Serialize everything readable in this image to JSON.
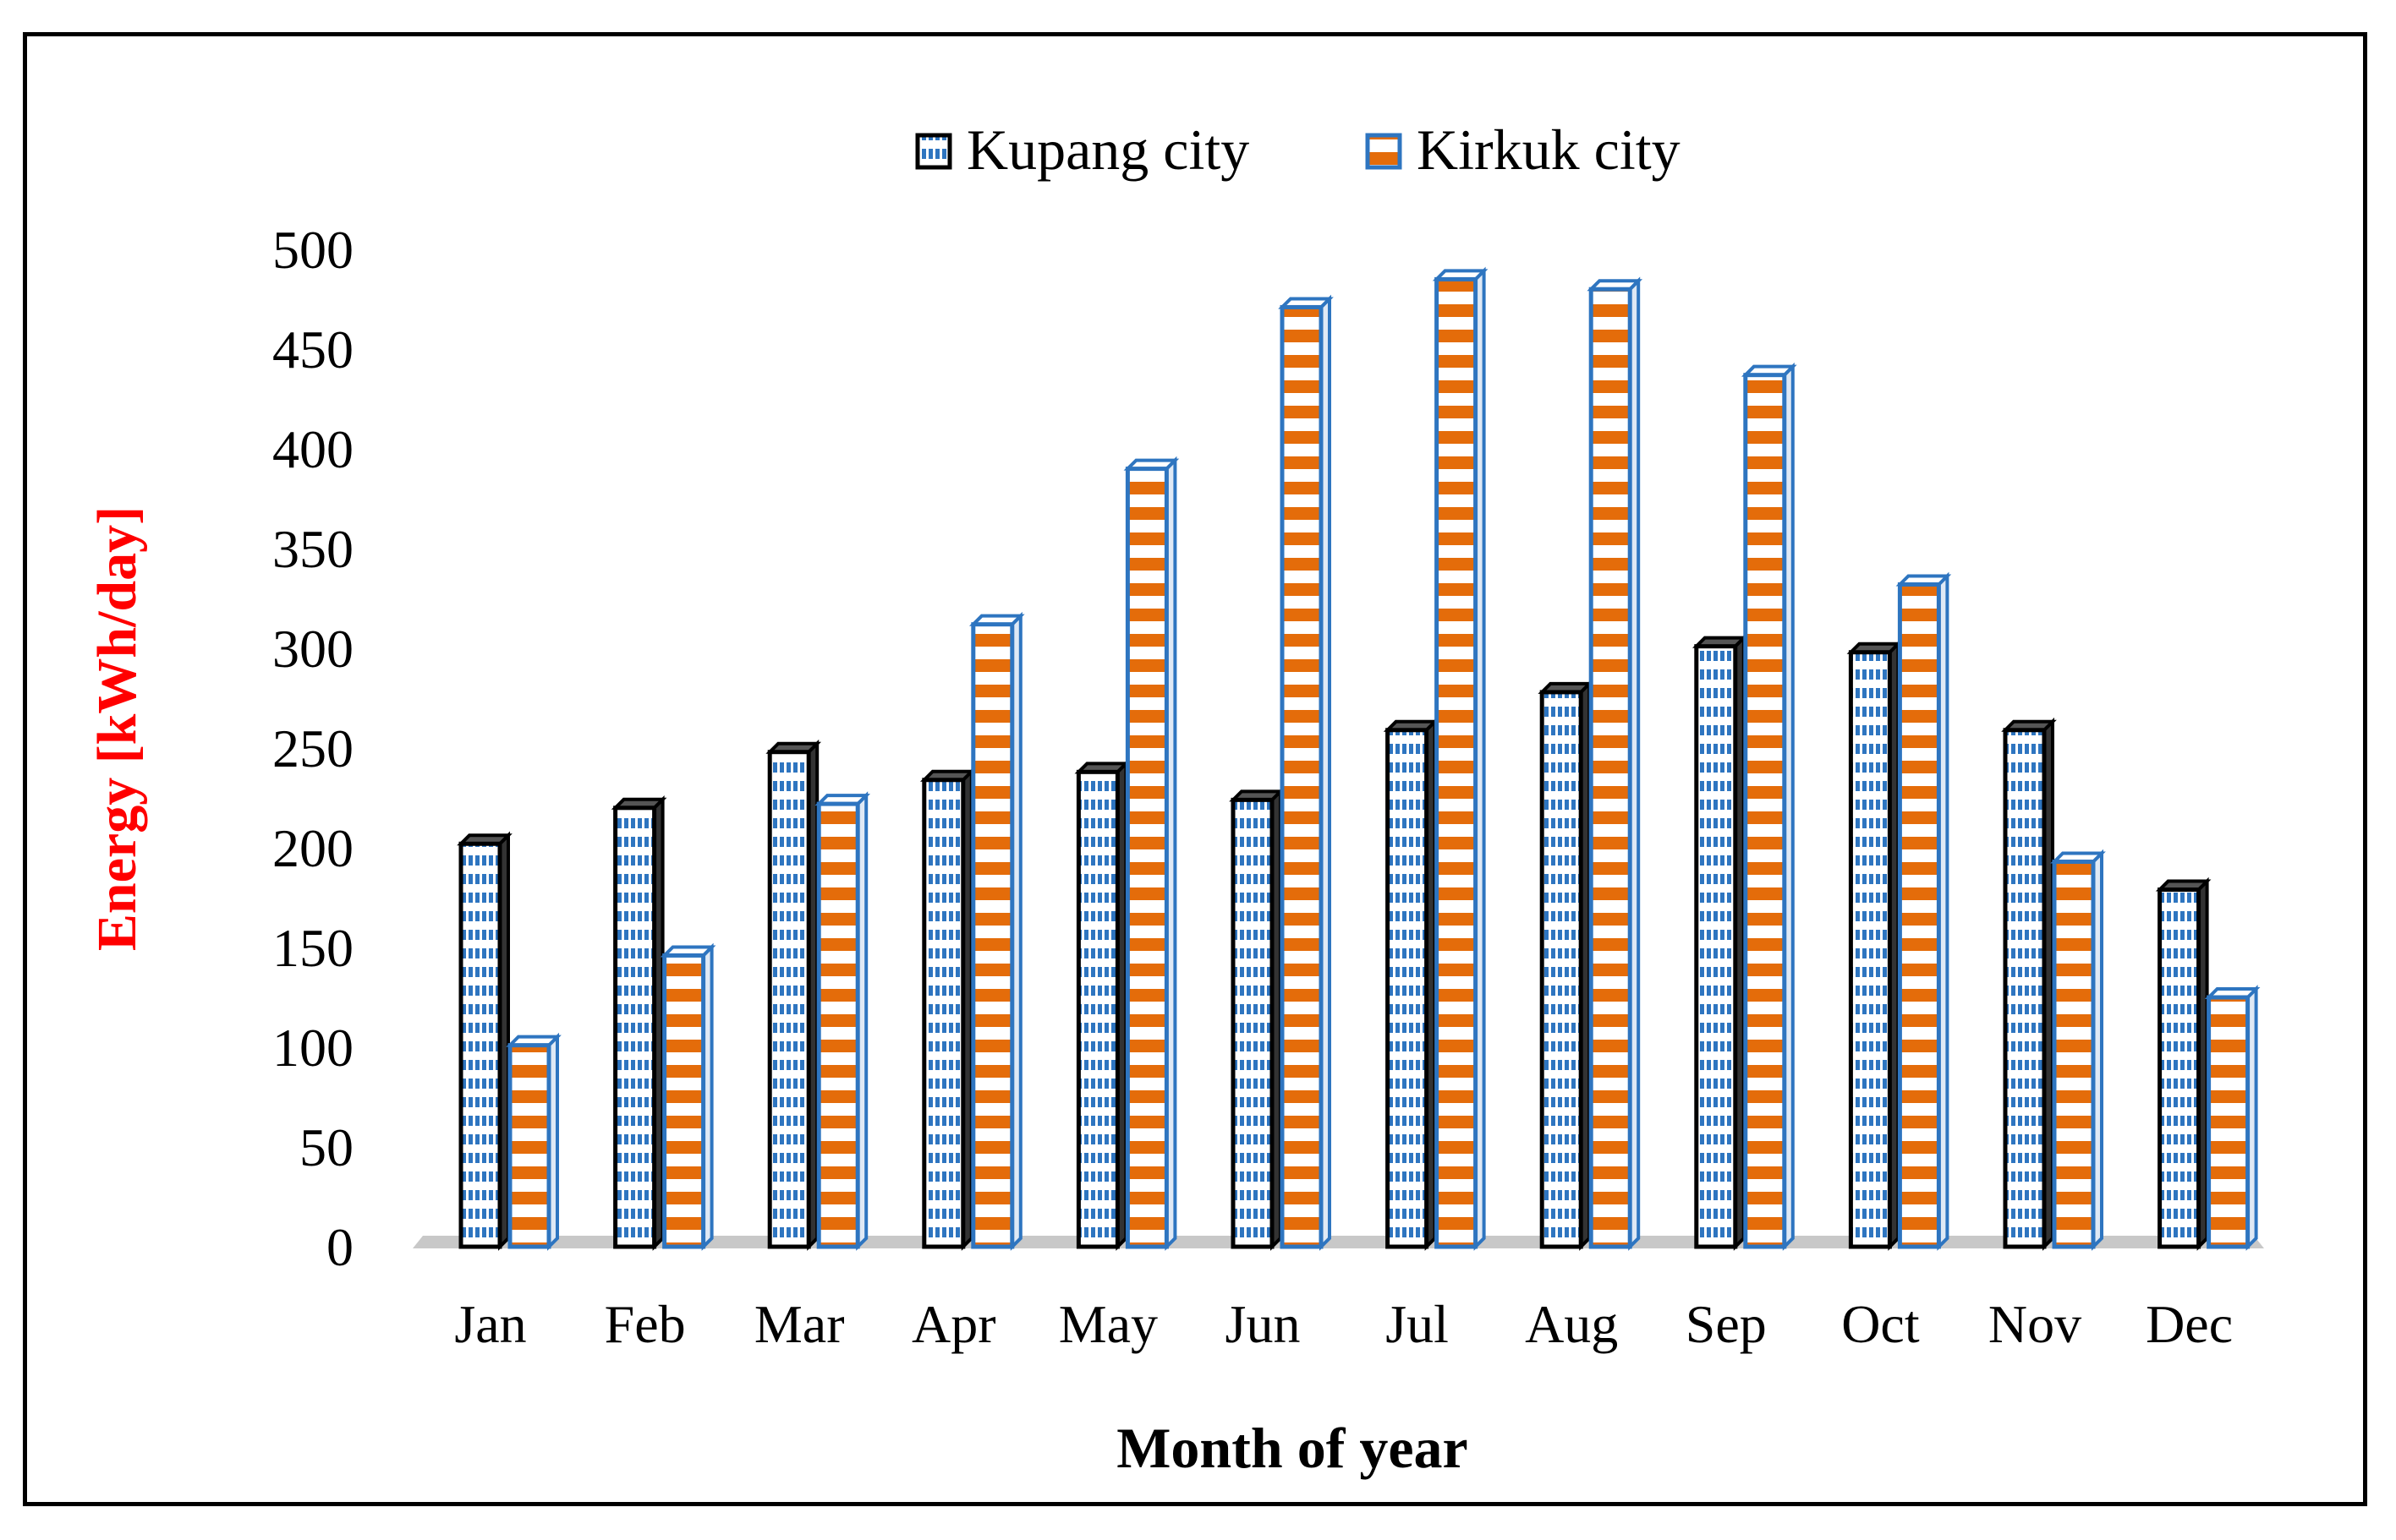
{
  "colors": {
    "kupang_border": "#000000",
    "kupang_dots": "#2e75c0",
    "kirkuk_border": "#2e75c0",
    "kirkuk_stripe": "#e46c0a",
    "ylabel": "#ff0000",
    "floor": "#c8c8c8"
  },
  "chart_data": {
    "type": "bar",
    "title": "",
    "xlabel": "Month of year",
    "ylabel": "Energy  [kWh/day]",
    "ylim": [
      0,
      500
    ],
    "yticks": [
      0,
      50,
      100,
      150,
      200,
      250,
      300,
      350,
      400,
      450,
      500
    ],
    "grid": false,
    "legend": "top-center",
    "categories": [
      "Jan",
      "Feb",
      "Mar",
      "Apr",
      "May",
      "Jun",
      "Jul",
      "Aug",
      "Sep",
      "Oct",
      "Nov",
      "Dec"
    ],
    "series": [
      {
        "name": "Kupang city",
        "values": [
          202,
          220,
          248,
          234,
          238,
          224,
          259,
          278,
          301,
          298,
          259,
          179
        ]
      },
      {
        "name": "Kirkuk city",
        "values": [
          101,
          146,
          222,
          312,
          390,
          471,
          485,
          480,
          437,
          332,
          193,
          125
        ]
      }
    ]
  }
}
